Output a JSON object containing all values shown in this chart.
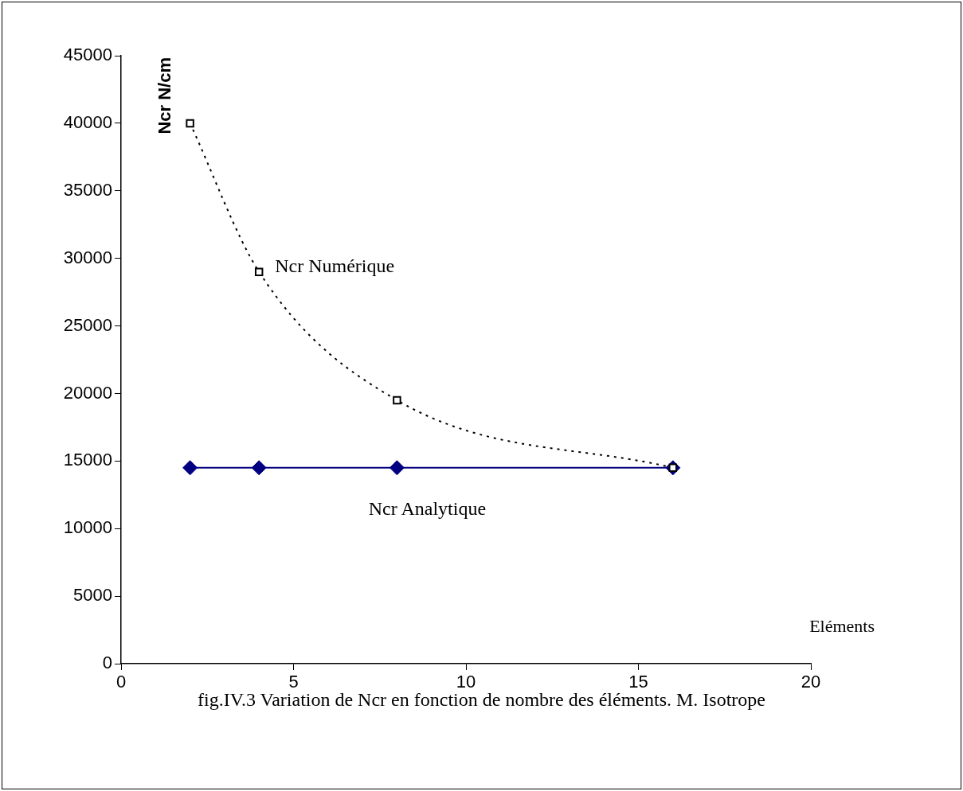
{
  "chart_data": {
    "type": "line",
    "xlabel": "Eléments",
    "ylabel": "Ncr N/cm",
    "xlim": [
      0,
      20
    ],
    "xticks": [
      0,
      5,
      10,
      15,
      20
    ],
    "ylim": [
      0,
      45000
    ],
    "yticks": [
      0,
      5000,
      10000,
      15000,
      20000,
      25000,
      30000,
      35000,
      40000,
      45000
    ],
    "grid": false,
    "legend": false,
    "series": [
      {
        "name": "Ncr Numérique",
        "color": "#000000",
        "x": [
          2,
          4,
          8,
          16
        ],
        "values": [
          40000,
          29000,
          19500,
          14500
        ],
        "marker": "square",
        "line_style": "dotted"
      },
      {
        "name": "Ncr Analytique",
        "color": "#000080",
        "x": [
          2,
          4,
          8,
          16
        ],
        "values": [
          14500,
          14500,
          14500,
          14500
        ],
        "marker": "diamond",
        "line_style": "solid"
      }
    ],
    "annotations": [
      "fig.IV.3 Variation de Ncr en fonction de nombre des éléments. M. Isotrope"
    ]
  }
}
